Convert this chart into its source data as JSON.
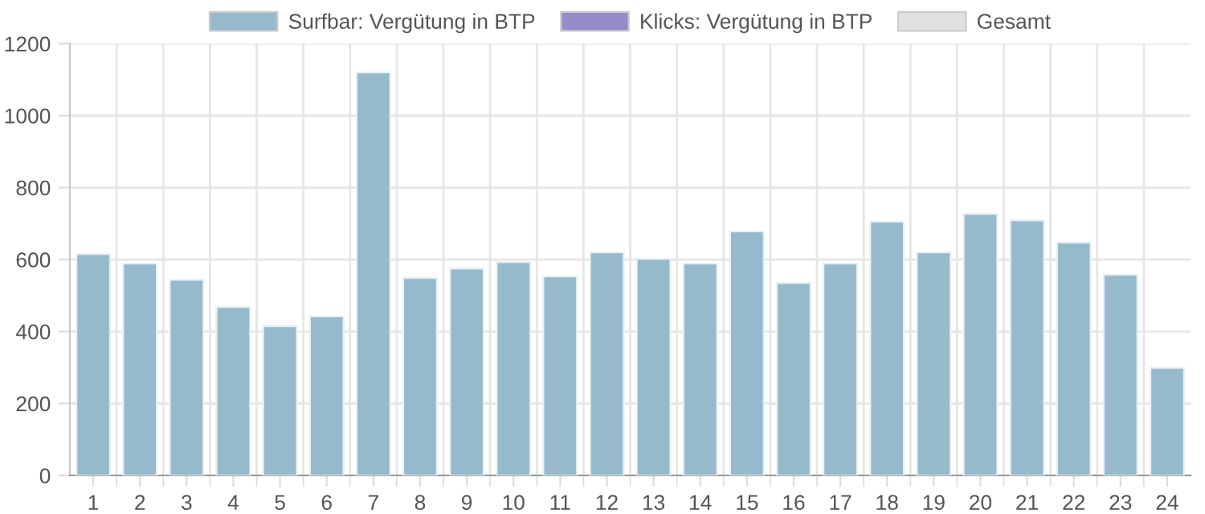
{
  "chart_data": {
    "type": "bar",
    "categories": [
      "1",
      "2",
      "3",
      "4",
      "5",
      "6",
      "7",
      "8",
      "9",
      "10",
      "11",
      "12",
      "13",
      "14",
      "15",
      "16",
      "17",
      "18",
      "19",
      "20",
      "21",
      "22",
      "23",
      "24"
    ],
    "series": [
      {
        "name": "Surfbar: Vergütung in BTP",
        "color": "#97b9cc",
        "values": [
          615,
          589,
          544,
          468,
          415,
          442,
          1120,
          549,
          575,
          593,
          553,
          620,
          602,
          589,
          678,
          535,
          589,
          705,
          620,
          727,
          709,
          647,
          558,
          299
        ]
      },
      {
        "name": "Klicks: Vergütung in BTP",
        "color": "#958ccc",
        "values": [
          null,
          null,
          null,
          null,
          null,
          null,
          null,
          null,
          null,
          null,
          null,
          null,
          null,
          null,
          null,
          null,
          null,
          null,
          null,
          null,
          null,
          null,
          null,
          null
        ]
      },
      {
        "name": "Gesamt",
        "color": "#e0e0e0",
        "values": [
          null,
          null,
          null,
          null,
          null,
          null,
          null,
          null,
          null,
          null,
          null,
          null,
          null,
          null,
          null,
          null,
          null,
          null,
          null,
          null,
          null,
          null,
          null,
          null
        ]
      }
    ],
    "ylim": [
      0,
      1200
    ],
    "yticks": [
      0,
      200,
      400,
      600,
      800,
      1000,
      1200
    ],
    "grid": true,
    "legend": "top"
  }
}
